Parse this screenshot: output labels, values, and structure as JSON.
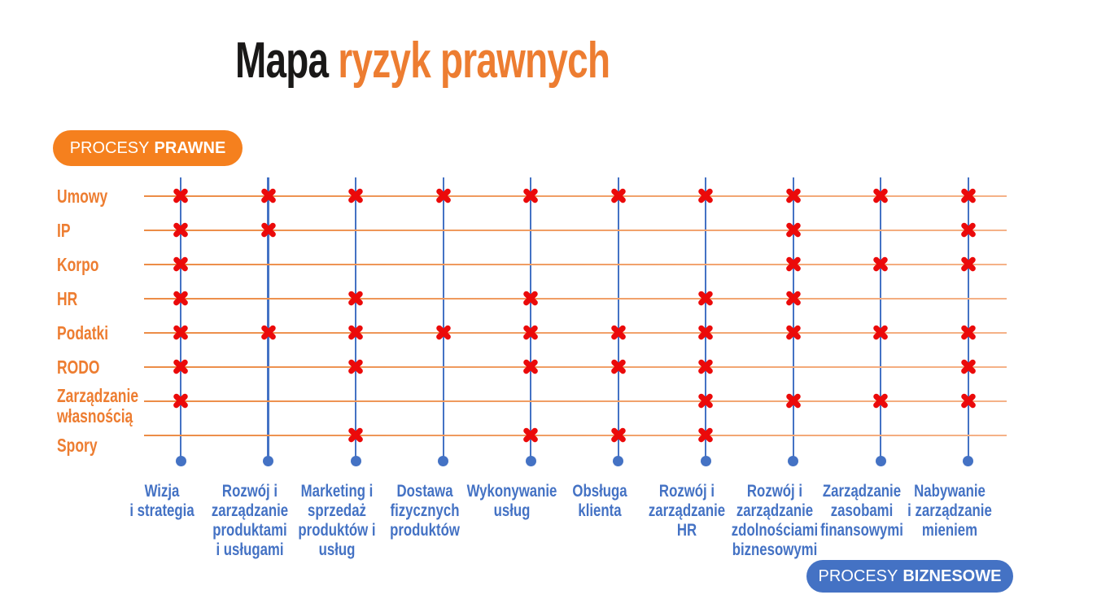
{
  "title": {
    "black": "Mapa",
    "orange": "ryzyk prawnych",
    "full": "Mapa ryzyk prawnych"
  },
  "legend": {
    "legal": {
      "prefix": "PROCESY",
      "bold": "PRAWNE"
    },
    "business": {
      "prefix": "PROCESY",
      "bold": "BIZNESOWE"
    }
  },
  "colors": {
    "orange_badge": "#F5801E",
    "orange_text": "#ED7D31",
    "blue": "#4472C4",
    "red_marker": "#EB0A0A",
    "title_black": "#191817"
  },
  "chart_data": {
    "type": "heatmap",
    "title": "Mapa ryzyk prawnych",
    "marker": {
      "name": "risk-x-marker",
      "glyph": "✖",
      "color": "#EB0A0A"
    },
    "rows": [
      {
        "name": "Umowy",
        "lines": [
          "Umowy"
        ]
      },
      {
        "name": "IP",
        "lines": [
          "IP"
        ]
      },
      {
        "name": "Korpo",
        "lines": [
          "Korpo"
        ]
      },
      {
        "name": "HR",
        "lines": [
          "HR"
        ]
      },
      {
        "name": "Podatki",
        "lines": [
          "Podatki"
        ]
      },
      {
        "name": "RODO",
        "lines": [
          "RODO"
        ]
      },
      {
        "name": "Zarządzanie własnością",
        "lines": [
          "Zarządzanie",
          "własnością"
        ]
      },
      {
        "name": "Spory",
        "lines": [
          "Spory"
        ]
      }
    ],
    "columns": [
      {
        "name": "Wizja i strategia",
        "lines": [
          "Wizja",
          "i strategia"
        ]
      },
      {
        "name": "Rozwój i zarządzanie produktami i usługami",
        "lines": [
          "Rozwój i",
          "zarządzanie",
          "produktami",
          "i usługami"
        ]
      },
      {
        "name": "Marketing i sprzedaż produktów i usług",
        "lines": [
          "Marketing i",
          "sprzedaż",
          "produktów i",
          "usług"
        ]
      },
      {
        "name": "Dostawa fizycznych produktów",
        "lines": [
          "Dostawa",
          "fizycznych",
          "produktów"
        ]
      },
      {
        "name": "Wykonywanie usług",
        "lines": [
          "Wykonywanie",
          "usług"
        ]
      },
      {
        "name": "Obsługa klienta",
        "lines": [
          "Obsługa",
          "klienta"
        ]
      },
      {
        "name": "Rozwój i zarządzanie HR",
        "lines": [
          "Rozwój i",
          "zarządzanie",
          "HR"
        ]
      },
      {
        "name": "Rozwój i zarządzanie zdolnościami biznesowymi",
        "lines": [
          "Rozwój i",
          "zarządzanie",
          "zdolnościami",
          "biznesowymi"
        ]
      },
      {
        "name": "Zarządzanie zasobami finansowymi",
        "lines": [
          "Zarządzanie",
          "zasobami",
          "finansowymi"
        ]
      },
      {
        "name": "Nabywanie i zarządzanie mieniem",
        "lines": [
          "Nabywanie",
          "i zarządzanie",
          "mieniem"
        ]
      }
    ],
    "matrix": [
      [
        1,
        1,
        1,
        1,
        1,
        1,
        1,
        1,
        1,
        1
      ],
      [
        1,
        1,
        0,
        0,
        0,
        0,
        0,
        1,
        0,
        1
      ],
      [
        1,
        0,
        0,
        0,
        0,
        0,
        0,
        1,
        1,
        1
      ],
      [
        1,
        0,
        1,
        0,
        1,
        0,
        1,
        1,
        0,
        0
      ],
      [
        1,
        1,
        1,
        1,
        1,
        1,
        1,
        1,
        1,
        1
      ],
      [
        1,
        0,
        1,
        0,
        1,
        1,
        1,
        0,
        0,
        1
      ],
      [
        1,
        0,
        0,
        0,
        0,
        0,
        1,
        1,
        1,
        1
      ],
      [
        0,
        0,
        1,
        0,
        1,
        1,
        1,
        0,
        0,
        0
      ]
    ]
  }
}
